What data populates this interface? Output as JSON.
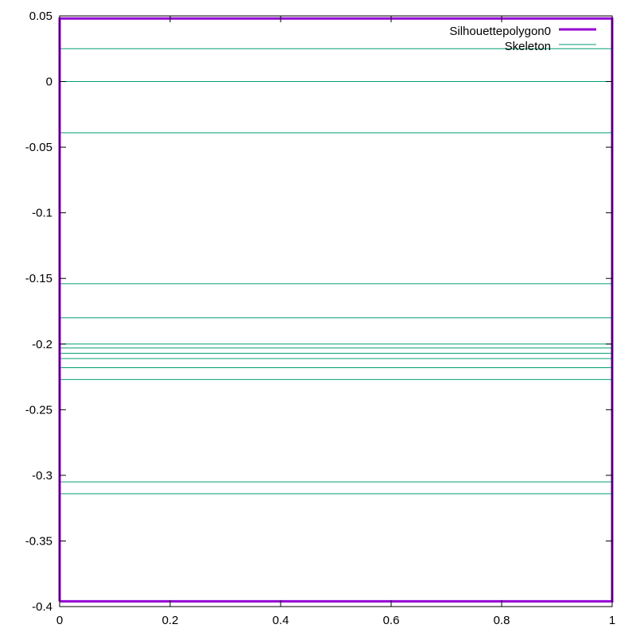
{
  "chart_data": {
    "type": "line",
    "title": "",
    "xlabel": "",
    "ylabel": "",
    "xlim": [
      0,
      1
    ],
    "ylim": [
      -0.4,
      0.05
    ],
    "x_ticks": [
      {
        "value": 0,
        "label": "0"
      },
      {
        "value": 0.2,
        "label": "0.2"
      },
      {
        "value": 0.4,
        "label": "0.4"
      },
      {
        "value": 0.6,
        "label": "0.6"
      },
      {
        "value": 0.8,
        "label": "0.8"
      },
      {
        "value": 1,
        "label": "1"
      }
    ],
    "y_ticks": [
      {
        "value": 0.05,
        "label": "0.05"
      },
      {
        "value": 0,
        "label": "0"
      },
      {
        "value": -0.05,
        "label": "-0.05"
      },
      {
        "value": -0.1,
        "label": "-0.1"
      },
      {
        "value": -0.15,
        "label": "-0.15"
      },
      {
        "value": -0.2,
        "label": "-0.2"
      },
      {
        "value": -0.25,
        "label": "-0.25"
      },
      {
        "value": -0.3,
        "label": "-0.3"
      },
      {
        "value": -0.35,
        "label": "-0.35"
      },
      {
        "value": -0.4,
        "label": "-0.4"
      }
    ],
    "grid": false,
    "legend_position": "top-right",
    "series": [
      {
        "name": "Silhouette",
        "name_subscript": "polygon0",
        "color": "#9400d3",
        "style": "thick",
        "polygon": [
          [
            0,
            -0.396
          ],
          [
            1,
            -0.396
          ],
          [
            1,
            0.048
          ],
          [
            0,
            0.048
          ],
          [
            0,
            -0.396
          ]
        ]
      },
      {
        "name": "Skeleton",
        "color": "#009e73",
        "style": "thin",
        "segments_y": [
          0.025,
          0.0,
          -0.039,
          -0.154,
          -0.18,
          -0.2,
          -0.203,
          -0.207,
          -0.211,
          -0.218,
          -0.227,
          -0.305,
          -0.314
        ],
        "x_range": [
          0,
          1
        ]
      }
    ]
  }
}
